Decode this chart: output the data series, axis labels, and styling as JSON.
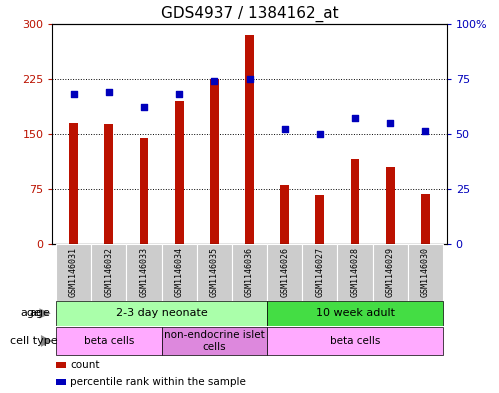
{
  "title": "GDS4937 / 1384162_at",
  "samples": [
    "GSM1146031",
    "GSM1146032",
    "GSM1146033",
    "GSM1146034",
    "GSM1146035",
    "GSM1146036",
    "GSM1146026",
    "GSM1146027",
    "GSM1146028",
    "GSM1146029",
    "GSM1146030"
  ],
  "counts": [
    165,
    163,
    144,
    195,
    225,
    285,
    80,
    67,
    115,
    105,
    68
  ],
  "percentiles": [
    68,
    69,
    62,
    68,
    74,
    75,
    52,
    50,
    57,
    55,
    51
  ],
  "ylim_left": [
    0,
    300
  ],
  "ylim_right": [
    0,
    100
  ],
  "yticks_left": [
    0,
    75,
    150,
    225,
    300
  ],
  "yticks_right": [
    0,
    25,
    50,
    75,
    100
  ],
  "bar_color": "#BB1100",
  "dot_color": "#0000BB",
  "plot_bg": "#FFFFFF",
  "bar_width": 0.25,
  "age_groups": [
    {
      "label": "2-3 day neonate",
      "start": 0,
      "end": 6,
      "color": "#AAFFAA"
    },
    {
      "label": "10 week adult",
      "start": 6,
      "end": 11,
      "color": "#44DD44"
    }
  ],
  "cell_type_groups": [
    {
      "label": "beta cells",
      "start": 0,
      "end": 3,
      "color": "#FFAAFF"
    },
    {
      "label": "non-endocrine islet\ncells",
      "start": 3,
      "end": 6,
      "color": "#DD88DD"
    },
    {
      "label": "beta cells",
      "start": 6,
      "end": 11,
      "color": "#FFAAFF"
    }
  ],
  "legend_items": [
    {
      "label": "count",
      "color": "#BB1100"
    },
    {
      "label": "percentile rank within the sample",
      "color": "#0000BB"
    }
  ],
  "fontsize_title": 11,
  "fontsize_ticks": 8,
  "fontsize_sample": 6,
  "fontsize_group": 8,
  "fontsize_label": 8
}
